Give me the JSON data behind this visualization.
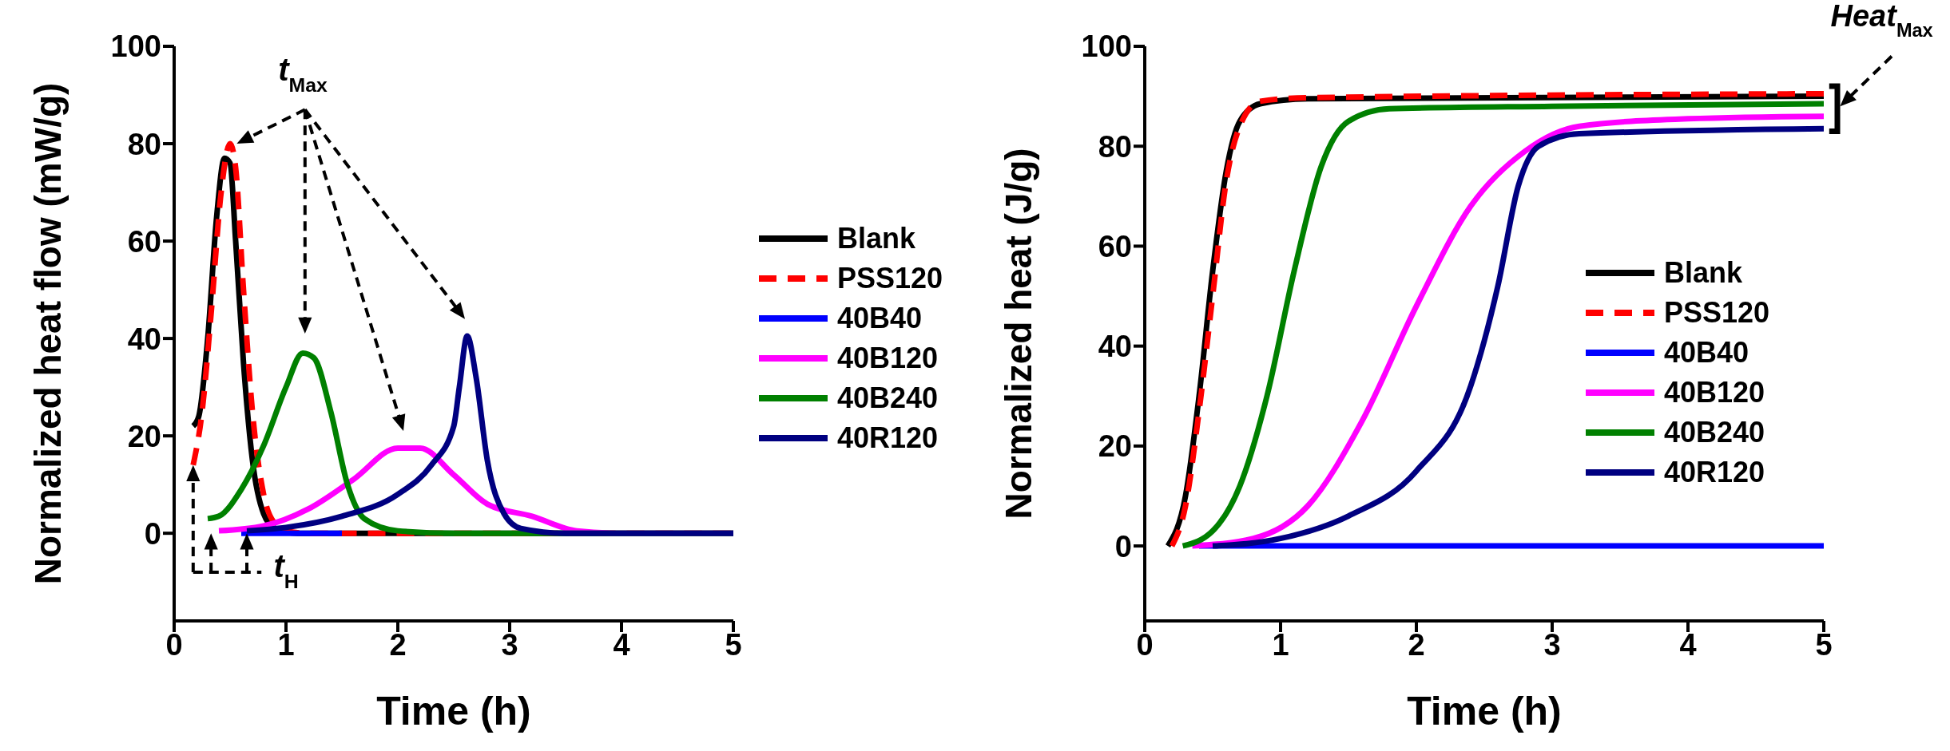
{
  "chart_data": [
    {
      "type": "line",
      "xlabel": "Time (h)",
      "ylabel": "Normalized heat flow (mW/g)",
      "xlim": [
        0,
        5
      ],
      "xticks": [
        0,
        1,
        2,
        3,
        4,
        5
      ],
      "ylim": [
        -18,
        100
      ],
      "yticks": [
        0,
        20,
        40,
        60,
        80,
        100
      ],
      "grid": false,
      "legend": "right",
      "marker": "none",
      "annotations": [
        "t$_{Max}$",
        "t$_{H}$"
      ],
      "series": [
        {
          "name": "Blank",
          "color": "#000000",
          "line_style": "solid",
          "x": [
            0.17,
            0.22,
            0.3,
            0.38,
            0.45,
            0.5,
            0.55,
            0.62,
            0.7,
            0.8,
            0.9,
            1.1,
            5
          ],
          "values": [
            22,
            24,
            40,
            65,
            77,
            76,
            60,
            35,
            15,
            4,
            1,
            0,
            0
          ]
        },
        {
          "name": "PSS120",
          "color": "#ff0000",
          "line_style": "dashed",
          "x": [
            0.17,
            0.25,
            0.33,
            0.42,
            0.5,
            0.55,
            0.62,
            0.7,
            0.8,
            0.9,
            1.0,
            1.2,
            5
          ],
          "values": [
            14,
            25,
            45,
            70,
            80,
            75,
            50,
            25,
            8,
            2,
            0.5,
            0,
            0
          ]
        },
        {
          "name": "40B40",
          "color": "#0000ff",
          "line_style": "solid",
          "x": [
            0.6,
            1.5
          ],
          "values": [
            0,
            0
          ]
        },
        {
          "name": "40B120",
          "color": "#ff00ff",
          "line_style": "solid",
          "x": [
            0.4,
            0.8,
            1.2,
            1.6,
            2.0,
            2.2,
            2.5,
            2.8,
            3.2,
            3.6,
            4,
            5
          ],
          "values": [
            0.5,
            1.5,
            5,
            11,
            17.5,
            17.5,
            12,
            6,
            3.5,
            0.5,
            0,
            0
          ]
        },
        {
          "name": "40B240",
          "color": "#008000",
          "line_style": "solid",
          "x": [
            0.3,
            0.4,
            0.6,
            0.8,
            1.0,
            1.15,
            1.25,
            1.4,
            1.55,
            1.7,
            2.0,
            2.5,
            5
          ],
          "values": [
            3,
            3.5,
            9,
            18,
            30,
            37,
            36,
            25,
            10,
            3,
            0.5,
            0,
            0
          ]
        },
        {
          "name": "40R120",
          "color": "#000080",
          "line_style": "solid",
          "x": [
            0.65,
            1.0,
            1.5,
            2.0,
            2.3,
            2.5,
            2.55,
            2.62,
            2.7,
            2.8,
            2.95,
            3.1,
            3.5,
            5
          ],
          "values": [
            0.5,
            1.2,
            3.5,
            8,
            14,
            22,
            30,
            40.5,
            32,
            15,
            4,
            1,
            0,
            0
          ]
        }
      ]
    },
    {
      "type": "line",
      "xlabel": "Time (h)",
      "ylabel": "Normalized heat (J/g)",
      "xlim": [
        0,
        5
      ],
      "xticks": [
        0,
        1,
        2,
        3,
        4,
        5
      ],
      "ylim": [
        -15,
        100
      ],
      "yticks": [
        0,
        20,
        40,
        60,
        80,
        100
      ],
      "grid": false,
      "legend": "right",
      "marker": "none",
      "annotations": [
        "Heat$_{Max}$"
      ],
      "series": [
        {
          "name": "Blank",
          "color": "#000000",
          "line_style": "solid",
          "x": [
            0.17,
            0.3,
            0.4,
            0.5,
            0.6,
            0.7,
            0.85,
            1.2,
            5
          ],
          "values": [
            0,
            10,
            30,
            55,
            75,
            85,
            88.5,
            89.5,
            90
          ]
        },
        {
          "name": "PSS120",
          "color": "#ff0000",
          "line_style": "dashed",
          "x": [
            0.2,
            0.3,
            0.4,
            0.5,
            0.6,
            0.7,
            0.85,
            1.2,
            5
          ],
          "values": [
            0,
            8,
            27,
            50,
            73,
            84,
            89,
            89.7,
            90.5
          ]
        },
        {
          "name": "40B40",
          "color": "#0000ff",
          "line_style": "solid",
          "x": [
            0.4,
            5
          ],
          "values": [
            0,
            0
          ]
        },
        {
          "name": "40B120",
          "color": "#ff00ff",
          "line_style": "solid",
          "x": [
            0.35,
            0.8,
            1.2,
            1.6,
            2.0,
            2.4,
            2.8,
            3.2,
            4,
            5
          ],
          "values": [
            0,
            1.5,
            8,
            25,
            48,
            68,
            79,
            84,
            85.5,
            86
          ]
        },
        {
          "name": "40B240",
          "color": "#008000",
          "line_style": "solid",
          "x": [
            0.28,
            0.5,
            0.7,
            0.9,
            1.1,
            1.3,
            1.5,
            1.8,
            3,
            5
          ],
          "values": [
            0,
            3,
            12,
            30,
            55,
            76,
            85,
            87.5,
            88,
            88.5
          ]
        },
        {
          "name": "40R120",
          "color": "#000080",
          "line_style": "solid",
          "x": [
            0.5,
            1.0,
            1.5,
            2.0,
            2.4,
            2.6,
            2.75,
            2.9,
            3.2,
            5
          ],
          "values": [
            0,
            1.5,
            6,
            15,
            32,
            52,
            72,
            80,
            82.5,
            83.5
          ]
        }
      ]
    }
  ]
}
